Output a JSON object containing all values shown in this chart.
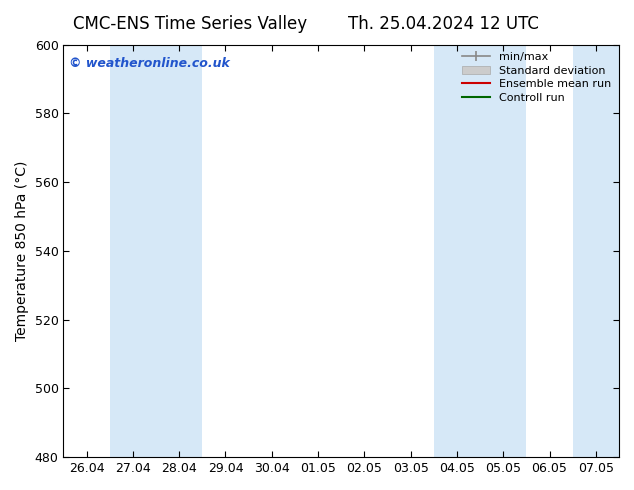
{
  "title_left": "CMC-ENS Time Series Valley",
  "title_right": "Th. 25.04.2024 12 UTC",
  "ylabel": "Temperature 850 hPa (°C)",
  "watermark": "© weatheronline.co.uk",
  "ylim": [
    480,
    600
  ],
  "yticks": [
    480,
    500,
    520,
    540,
    560,
    580,
    600
  ],
  "x_tick_labels": [
    "26.04",
    "27.04",
    "28.04",
    "29.04",
    "30.04",
    "01.05",
    "02.05",
    "03.05",
    "04.05",
    "05.05",
    "06.05",
    "07.05"
  ],
  "x_tick_positions": [
    0,
    1,
    2,
    3,
    4,
    5,
    6,
    7,
    8,
    9,
    10,
    11
  ],
  "xlim": [
    -0.5,
    11.5
  ],
  "shaded_bands": [
    {
      "x_start": 0.5,
      "x_end": 1.5,
      "color": "#d6e8f7"
    },
    {
      "x_start": 1.5,
      "x_end": 2.5,
      "color": "#d6e8f7"
    },
    {
      "x_start": 7.5,
      "x_end": 8.5,
      "color": "#d6e8f7"
    },
    {
      "x_start": 8.5,
      "x_end": 9.5,
      "color": "#d6e8f7"
    },
    {
      "x_start": 10.5,
      "x_end": 11.5,
      "color": "#d6e8f7"
    }
  ],
  "watermark_color": "#2255cc",
  "bg_color": "#ffffff",
  "plot_bg_color": "#ffffff",
  "title_fontsize": 12,
  "axis_label_fontsize": 10,
  "tick_fontsize": 9,
  "legend_fontsize": 8
}
